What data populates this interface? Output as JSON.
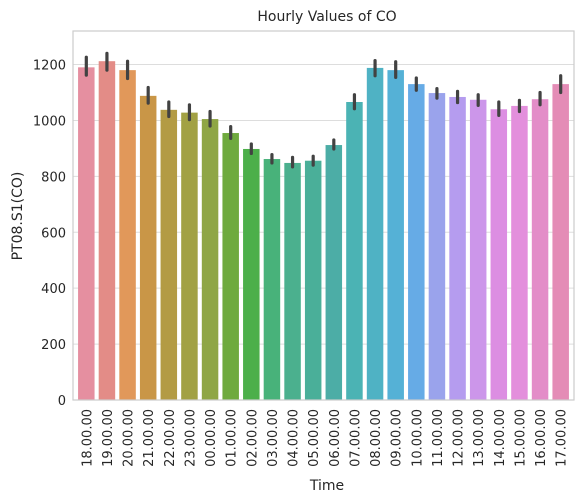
{
  "chart_data": {
    "type": "bar",
    "title": "Hourly Values of CO",
    "xlabel": "Time",
    "ylabel": "PT08.S1(CO)",
    "ylim": [
      0,
      1320
    ],
    "yticks": [
      0,
      200,
      400,
      600,
      800,
      1000,
      1200
    ],
    "grid": "horizontal",
    "legend": "none",
    "categories": [
      "18.00.00",
      "19.00.00",
      "20.00.00",
      "21.00.00",
      "22.00.00",
      "23.00.00",
      "00.00.00",
      "01.00.00",
      "02.00.00",
      "03.00.00",
      "04.00.00",
      "05.00.00",
      "06.00.00",
      "07.00.00",
      "08.00.00",
      "09.00.00",
      "10.00.00",
      "11.00.00",
      "12.00.00",
      "13.00.00",
      "14.00.00",
      "15.00.00",
      "16.00.00",
      "17.00.00"
    ],
    "values": [
      1190,
      1212,
      1180,
      1088,
      1038,
      1028,
      1005,
      955,
      898,
      862,
      848,
      856,
      912,
      1066,
      1188,
      1180,
      1130,
      1098,
      1084,
      1074,
      1040,
      1052,
      1076,
      1130
    ],
    "ci_low": [
      1162,
      1180,
      1150,
      1062,
      1014,
      1003,
      980,
      936,
      882,
      848,
      834,
      840,
      898,
      1042,
      1160,
      1154,
      1108,
      1080,
      1064,
      1054,
      1018,
      1032,
      1056,
      1100
    ],
    "ci_high": [
      1226,
      1240,
      1212,
      1118,
      1066,
      1056,
      1032,
      978,
      916,
      878,
      868,
      872,
      930,
      1092,
      1214,
      1210,
      1152,
      1114,
      1104,
      1092,
      1066,
      1072,
      1100,
      1160
    ],
    "colors": [
      "#e58fa0",
      "#e38c87",
      "#e1985a",
      "#c99647",
      "#b39b44",
      "#a2a144",
      "#8fa645",
      "#6faa3e",
      "#4caf4a",
      "#48b27a",
      "#4bb08e",
      "#4aaf99",
      "#4cada6",
      "#4bb3b4",
      "#4fb2c4",
      "#55b1d6",
      "#66abe6",
      "#9aa3ec",
      "#b59cef",
      "#cc96ea",
      "#dc8ee2",
      "#e38fdc",
      "#e38dc8",
      "#e48cb6"
    ]
  }
}
